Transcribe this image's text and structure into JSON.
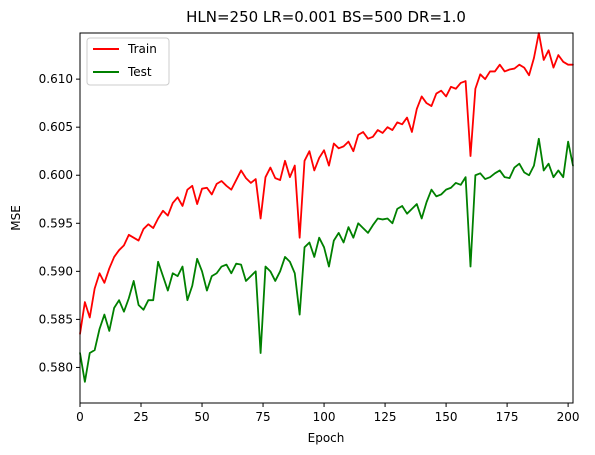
{
  "chart_data": {
    "type": "line",
    "title": "HLN=250 LR=0.001 BS=500 DR=1.0",
    "xlabel": "Epoch",
    "ylabel": "MSE",
    "xlim": [
      0,
      202
    ],
    "ylim": [
      0.5763,
      0.6148
    ],
    "x_ticks": [
      0,
      25,
      50,
      75,
      100,
      125,
      150,
      175,
      200
    ],
    "x_tick_labels": [
      "0",
      "25",
      "50",
      "75",
      "100",
      "125",
      "150",
      "175",
      "200"
    ],
    "y_ticks": [
      0.58,
      0.585,
      0.59,
      0.595,
      0.6,
      0.605,
      0.61
    ],
    "y_tick_labels": [
      "0.580",
      "0.585",
      "0.590",
      "0.595",
      "0.600",
      "0.605",
      "0.610"
    ],
    "grid": false,
    "legend_position": "top-left",
    "x": [
      0,
      2,
      4,
      6,
      8,
      10,
      12,
      14,
      16,
      18,
      20,
      22,
      24,
      26,
      28,
      30,
      32,
      34,
      36,
      38,
      40,
      42,
      44,
      46,
      48,
      50,
      52,
      54,
      56,
      58,
      60,
      62,
      64,
      66,
      68,
      70,
      72,
      74,
      76,
      78,
      80,
      82,
      84,
      86,
      88,
      90,
      92,
      94,
      96,
      98,
      100,
      102,
      104,
      106,
      108,
      110,
      112,
      114,
      116,
      118,
      120,
      122,
      124,
      126,
      128,
      130,
      132,
      134,
      136,
      138,
      140,
      142,
      144,
      146,
      148,
      150,
      152,
      154,
      156,
      158,
      160,
      162,
      164,
      166,
      168,
      170,
      172,
      174,
      176,
      178,
      180,
      182,
      184,
      186,
      188,
      190,
      192,
      194,
      196,
      198,
      200,
      202
    ],
    "series": [
      {
        "name": "Train",
        "color": "#ff0000",
        "values": [
          0.5835,
          0.5868,
          0.5852,
          0.5882,
          0.5898,
          0.5888,
          0.5903,
          0.5915,
          0.5922,
          0.5927,
          0.5938,
          0.5935,
          0.5932,
          0.5944,
          0.5949,
          0.5945,
          0.5955,
          0.5963,
          0.5958,
          0.5971,
          0.5977,
          0.5968,
          0.5985,
          0.5989,
          0.597,
          0.5986,
          0.5987,
          0.598,
          0.5991,
          0.5994,
          0.5989,
          0.5985,
          0.5995,
          0.6005,
          0.5997,
          0.5992,
          0.5996,
          0.5955,
          0.5998,
          0.6008,
          0.5997,
          0.5995,
          0.6015,
          0.5998,
          0.601,
          0.5935,
          0.6015,
          0.6025,
          0.6005,
          0.6018,
          0.6026,
          0.601,
          0.6033,
          0.6028,
          0.603,
          0.6035,
          0.6025,
          0.6042,
          0.6045,
          0.6038,
          0.604,
          0.6047,
          0.6044,
          0.605,
          0.6047,
          0.6055,
          0.6053,
          0.606,
          0.6045,
          0.6069,
          0.6082,
          0.6075,
          0.6072,
          0.6085,
          0.6088,
          0.6082,
          0.6092,
          0.609,
          0.6096,
          0.6098,
          0.602,
          0.609,
          0.6105,
          0.61,
          0.6108,
          0.6108,
          0.6115,
          0.6108,
          0.611,
          0.6111,
          0.6115,
          0.6112,
          0.6104,
          0.6122,
          0.6148,
          0.612,
          0.613,
          0.6112,
          0.6125,
          0.6118,
          0.6115,
          0.6115
        ]
      },
      {
        "name": "Test",
        "color": "#008000",
        "values": [
          0.5815,
          0.5785,
          0.5815,
          0.5818,
          0.584,
          0.5855,
          0.5838,
          0.5862,
          0.587,
          0.5858,
          0.5872,
          0.589,
          0.5865,
          0.586,
          0.587,
          0.587,
          0.591,
          0.5895,
          0.588,
          0.5898,
          0.5895,
          0.5905,
          0.587,
          0.5885,
          0.5913,
          0.59,
          0.588,
          0.5895,
          0.5898,
          0.5905,
          0.5907,
          0.5898,
          0.5908,
          0.5907,
          0.589,
          0.5895,
          0.59,
          0.5815,
          0.5905,
          0.59,
          0.589,
          0.59,
          0.5915,
          0.591,
          0.5898,
          0.5855,
          0.5925,
          0.593,
          0.5915,
          0.5935,
          0.5925,
          0.5905,
          0.5932,
          0.594,
          0.593,
          0.5946,
          0.5935,
          0.595,
          0.5945,
          0.594,
          0.5948,
          0.5955,
          0.5954,
          0.5955,
          0.595,
          0.5965,
          0.5968,
          0.596,
          0.5965,
          0.597,
          0.5955,
          0.5972,
          0.5985,
          0.5978,
          0.598,
          0.5985,
          0.5987,
          0.5992,
          0.599,
          0.5998,
          0.5905,
          0.6,
          0.6002,
          0.5996,
          0.5998,
          0.6002,
          0.6005,
          0.5998,
          0.5997,
          0.6008,
          0.6012,
          0.6003,
          0.6,
          0.601,
          0.6038,
          0.6005,
          0.6012,
          0.5998,
          0.6005,
          0.5998,
          0.6035,
          0.601
        ]
      }
    ]
  }
}
